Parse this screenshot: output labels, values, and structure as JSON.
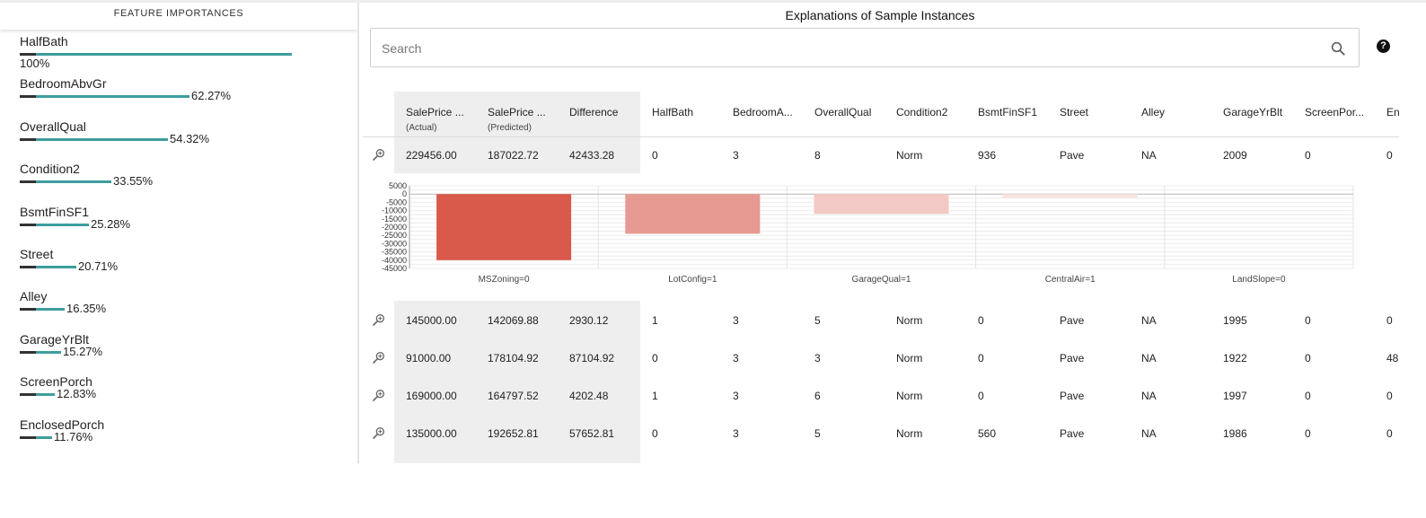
{
  "feature_importances": {
    "header": "FEATURE IMPORTANCES",
    "items": [
      {
        "name": "HalfBath",
        "percent": "100%",
        "value": 100
      },
      {
        "name": "BedroomAbvGr",
        "percent": "62.27%",
        "value": 62.27
      },
      {
        "name": "OverallQual",
        "percent": "54.32%",
        "value": 54.32
      },
      {
        "name": "Condition2",
        "percent": "33.55%",
        "value": 33.55
      },
      {
        "name": "BsmtFinSF1",
        "percent": "25.28%",
        "value": 25.28
      },
      {
        "name": "Street",
        "percent": "20.71%",
        "value": 20.71
      },
      {
        "name": "Alley",
        "percent": "16.35%",
        "value": 16.35
      },
      {
        "name": "GarageYrBlt",
        "percent": "15.27%",
        "value": 15.27
      },
      {
        "name": "ScreenPorch",
        "percent": "12.83%",
        "value": 12.83
      },
      {
        "name": "EnclosedPorch",
        "percent": "11.76%",
        "value": 11.76
      }
    ]
  },
  "explanations": {
    "title": "Explanations of Sample Instances",
    "search": {
      "placeholder": "Search",
      "value": ""
    },
    "help_glyph": "?",
    "columns": [
      {
        "label": "SalePrice ...",
        "sub": "(Actual)"
      },
      {
        "label": "SalePrice ...",
        "sub": "(Predicted)"
      },
      {
        "label": "Difference",
        "sub": ""
      },
      {
        "label": "HalfBath",
        "sub": ""
      },
      {
        "label": "BedroomA...",
        "sub": ""
      },
      {
        "label": "OverallQual",
        "sub": ""
      },
      {
        "label": "Condition2",
        "sub": ""
      },
      {
        "label": "BsmtFinSF1",
        "sub": ""
      },
      {
        "label": "Street",
        "sub": ""
      },
      {
        "label": "Alley",
        "sub": ""
      },
      {
        "label": "GarageYrBlt",
        "sub": ""
      },
      {
        "label": "ScreenPor...",
        "sub": ""
      },
      {
        "label": "En",
        "sub": ""
      }
    ],
    "rows": [
      [
        "229456.00",
        "187022.72",
        "42433.28",
        "0",
        "3",
        "8",
        "Norm",
        "936",
        "Pave",
        "NA",
        "2009",
        "0",
        "0"
      ],
      [
        "145000.00",
        "142069.88",
        "2930.12",
        "1",
        "3",
        "5",
        "Norm",
        "0",
        "Pave",
        "NA",
        "1995",
        "0",
        "0"
      ],
      [
        "91000.00",
        "178104.92",
        "87104.92",
        "0",
        "3",
        "3",
        "Norm",
        "0",
        "Pave",
        "NA",
        "1922",
        "0",
        "48"
      ],
      [
        "169000.00",
        "164797.52",
        "4202.48",
        "1",
        "3",
        "6",
        "Norm",
        "0",
        "Pave",
        "NA",
        "1997",
        "0",
        "0"
      ],
      [
        "135000.00",
        "192652.81",
        "57652.81",
        "0",
        "3",
        "5",
        "Norm",
        "560",
        "Pave",
        "NA",
        "1986",
        "0",
        "0"
      ]
    ]
  },
  "chart_data": {
    "type": "bar",
    "categories": [
      "MSZoning=0",
      "LotConfig=1",
      "GarageQual=1",
      "CentralAir=1",
      "LandSlope=0"
    ],
    "values": [
      -40000,
      -24000,
      -12000,
      -2500,
      0
    ],
    "colors": [
      "#d9594a",
      "#e69a92",
      "#f2c9c4",
      "#f9e4e1",
      "#fbecea"
    ],
    "ylim": [
      -45000,
      5000
    ],
    "yticks": [
      5000,
      0,
      -5000,
      -10000,
      -15000,
      -20000,
      -25000,
      -30000,
      -35000,
      -40000,
      -45000
    ],
    "grid": true
  }
}
